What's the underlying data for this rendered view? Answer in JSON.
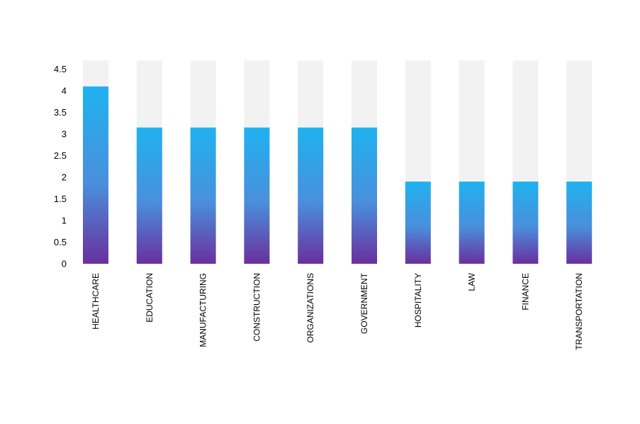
{
  "chart_data": {
    "type": "bar",
    "title": "",
    "xlabel": "",
    "ylabel": "",
    "categories": [
      "HEALTHCARE",
      "EDUCATION",
      "MANUFACTURING",
      "CONSTRUCTION",
      "ORGANIZATIONS",
      "GOVERNMENT",
      "HOSPITALITY",
      "LAW",
      "FINANCE",
      "TRANSPORTATION"
    ],
    "values": [
      4.1,
      3.15,
      3.15,
      3.15,
      3.15,
      3.15,
      1.9,
      1.9,
      1.9,
      1.9
    ],
    "background_max": 4.7,
    "ylim": [
      0,
      4.5
    ],
    "yticks": [
      0,
      0.5,
      1,
      1.5,
      2,
      2.5,
      3,
      3.5,
      4,
      4.5
    ],
    "ytick_labels": [
      "0",
      "0.5",
      "1",
      "1.5",
      "2",
      "2.5",
      "3",
      "3.5",
      "4",
      "4.5"
    ],
    "grid": false,
    "legend": "none",
    "colors": {
      "bar_top": "#1fb2ef",
      "bar_mid": "#4a8fdc",
      "bar_bottom": "#6a2f9e",
      "track": "#f2f2f2"
    }
  }
}
